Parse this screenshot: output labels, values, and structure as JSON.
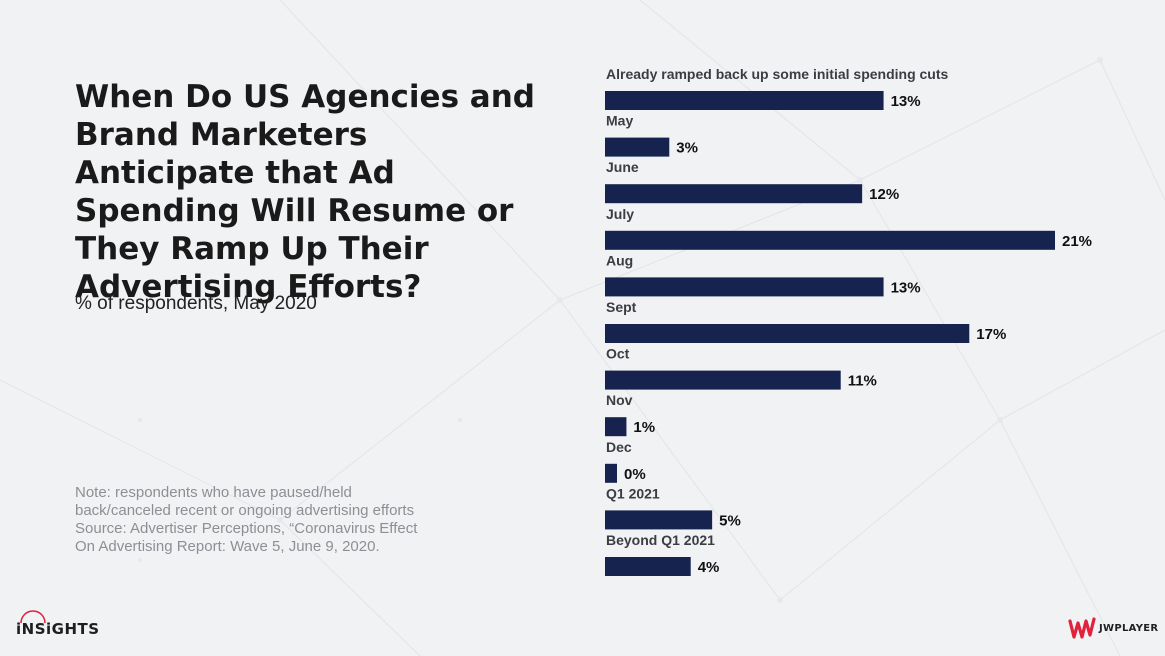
{
  "title": "When Do US Agencies and Brand Marketers Anticipate that Ad Spending Will Resume or They Ramp Up Their Advertising Efforts?",
  "subtitle": "% of respondents, May 2020",
  "note_lines": [
    "Note: respondents who have paused/held",
    "back/canceled recent or ongoing advertising efforts",
    "Source: Advertiser Perceptions, “Coronavirus Effect",
    "On Advertising Report: Wave 5, June 9, 2020."
  ],
  "footer": {
    "left_logo_text": "iNSiGHTS",
    "right_logo_text": "JWPLAYER"
  },
  "colors": {
    "bar": "#16234f",
    "background": "#f1f2f4",
    "accent": "#e0223b"
  },
  "chart_data": {
    "type": "bar",
    "orientation": "horizontal",
    "categories": [
      "Already ramped back up some initial spending cuts",
      "May",
      "June",
      "July",
      "Aug",
      "Sept",
      "Oct",
      "Nov",
      "Dec",
      "Q1 2021",
      "Beyond Q1 2021"
    ],
    "values": [
      13,
      3,
      12,
      21,
      13,
      17,
      11,
      1,
      0,
      5,
      4
    ],
    "value_labels": [
      "13%",
      "3%",
      "12%",
      "21%",
      "13%",
      "17%",
      "11%",
      "1%",
      "0%",
      "5%",
      "4%"
    ],
    "xlabel": "",
    "ylabel": "",
    "grid": false,
    "legend": "none"
  }
}
